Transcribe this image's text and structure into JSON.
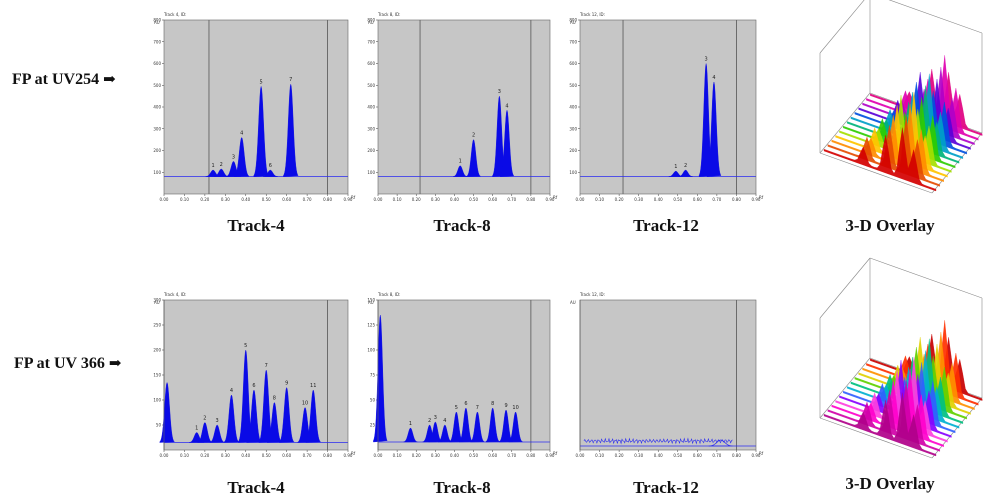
{
  "rows": [
    {
      "label": "FP at UV254",
      "arrow": "➡"
    },
    {
      "label": "FP at UV 366",
      "arrow": "➡"
    }
  ],
  "colors": {
    "plot_bg": "#c6c6c6",
    "peak_fill": "#0a0ae6",
    "baseline": "#2a2af0",
    "rf_marker": "#555555"
  },
  "chart_data": [
    {
      "type": "area",
      "caption": "Track-4",
      "header": "Track 4, ID:",
      "xlim": [
        0,
        0.9
      ],
      "ylim": [
        0,
        800
      ],
      "yticks": [
        100,
        200,
        300,
        400,
        500,
        600,
        700,
        800
      ],
      "xticks": [
        0.0,
        0.1,
        0.2,
        0.3,
        0.4,
        0.5,
        0.6,
        0.7,
        0.8,
        0.9
      ],
      "xtick_labels": [
        "0.00",
        "0.10",
        "0.20",
        "0.30",
        "0.40",
        "0.50",
        "0.60",
        "0.70",
        "0.80",
        "0.90"
      ],
      "y_unit": "AU",
      "x_unit": "Rf",
      "rf_lines": [
        0.22,
        0.8
      ],
      "baseline": 80,
      "peaks": [
        {
          "label": "1",
          "rf": 0.24,
          "height": 110
        },
        {
          "label": "2",
          "rf": 0.28,
          "height": 115
        },
        {
          "label": "3",
          "rf": 0.34,
          "height": 150
        },
        {
          "label": "4",
          "rf": 0.38,
          "height": 260
        },
        {
          "label": "5",
          "rf": 0.475,
          "height": 495
        },
        {
          "label": "6",
          "rf": 0.52,
          "height": 110
        },
        {
          "label": "7",
          "rf": 0.62,
          "height": 505
        }
      ]
    },
    {
      "type": "area",
      "caption": "Track-8",
      "header": "Track 8, ID:",
      "xlim": [
        0,
        0.9
      ],
      "ylim": [
        0,
        800
      ],
      "yticks": [
        100,
        200,
        300,
        400,
        500,
        600,
        700,
        800
      ],
      "xticks": [
        0.0,
        0.1,
        0.2,
        0.3,
        0.4,
        0.5,
        0.6,
        0.7,
        0.8,
        0.9
      ],
      "xtick_labels": [
        "0.00",
        "0.10",
        "0.20",
        "0.30",
        "0.40",
        "0.50",
        "0.60",
        "0.70",
        "0.80",
        "0.90"
      ],
      "y_unit": "AU",
      "x_unit": "Rf",
      "rf_lines": [
        0.22,
        0.8
      ],
      "baseline": 80,
      "peaks": [
        {
          "label": "1",
          "rf": 0.43,
          "height": 130
        },
        {
          "label": "2",
          "rf": 0.5,
          "height": 250
        },
        {
          "label": "3",
          "rf": 0.635,
          "height": 450
        },
        {
          "label": "4",
          "rf": 0.675,
          "height": 385
        }
      ]
    },
    {
      "type": "area",
      "caption": "Track-12",
      "header": "Track 12, ID:",
      "xlim": [
        0,
        0.9
      ],
      "ylim": [
        0,
        800
      ],
      "yticks": [
        100,
        200,
        300,
        400,
        500,
        600,
        700,
        800
      ],
      "xticks": [
        0.0,
        0.1,
        0.2,
        0.3,
        0.4,
        0.5,
        0.6,
        0.7,
        0.8,
        0.9
      ],
      "xtick_labels": [
        "0.00",
        "0.10",
        "0.20",
        "0.30",
        "0.40",
        "0.50",
        "0.60",
        "0.70",
        "0.80",
        "0.90"
      ],
      "y_unit": "AU",
      "x_unit": "Rf",
      "rf_lines": [
        0.22,
        0.8
      ],
      "baseline": 80,
      "peaks": [
        {
          "label": "1",
          "rf": 0.49,
          "height": 105
        },
        {
          "label": "2",
          "rf": 0.54,
          "height": 110
        },
        {
          "label": "3",
          "rf": 0.645,
          "height": 600
        },
        {
          "label": "4",
          "rf": 0.685,
          "height": 515
        }
      ]
    },
    {
      "type": "area3d",
      "caption": "3-D Overlay",
      "palette": [
        "#d40000",
        "#e54b00",
        "#ff8c00",
        "#ffc400",
        "#a6e000",
        "#2ecc00",
        "#00b37a",
        "#00a0c8",
        "#0050e0",
        "#5a00d8",
        "#b000c8",
        "#e000b0",
        "#e00080"
      ]
    },
    {
      "type": "area",
      "caption": "Track-4",
      "header": "Track 4, ID:",
      "xlim": [
        0,
        0.9
      ],
      "ylim": [
        0,
        300
      ],
      "yticks": [
        50,
        100,
        150,
        200,
        250,
        300
      ],
      "xticks": [
        0.0,
        0.1,
        0.2,
        0.3,
        0.4,
        0.5,
        0.6,
        0.7,
        0.8,
        0.9
      ],
      "xtick_labels": [
        "0.00",
        "0.10",
        "0.20",
        "0.30",
        "0.40",
        "0.50",
        "0.60",
        "0.70",
        "0.80",
        "0.90"
      ],
      "y_unit": "AU",
      "x_unit": "Rf",
      "rf_lines": [
        0.0,
        0.8
      ],
      "baseline": 15,
      "peaks": [
        {
          "label": "",
          "rf": 0.015,
          "height": 135
        },
        {
          "label": "1",
          "rf": 0.16,
          "height": 35
        },
        {
          "label": "2",
          "rf": 0.2,
          "height": 55
        },
        {
          "label": "3",
          "rf": 0.26,
          "height": 50
        },
        {
          "label": "4",
          "rf": 0.33,
          "height": 110
        },
        {
          "label": "5",
          "rf": 0.4,
          "height": 200
        },
        {
          "label": "6",
          "rf": 0.44,
          "height": 120
        },
        {
          "label": "7",
          "rf": 0.5,
          "height": 160
        },
        {
          "label": "8",
          "rf": 0.54,
          "height": 95
        },
        {
          "label": "9",
          "rf": 0.6,
          "height": 125
        },
        {
          "label": "10",
          "rf": 0.69,
          "height": 85
        },
        {
          "label": "11",
          "rf": 0.73,
          "height": 120
        }
      ]
    },
    {
      "type": "area",
      "caption": "Track-8",
      "header": "Track 8, ID:",
      "xlim": [
        0,
        0.9
      ],
      "ylim": [
        0,
        150
      ],
      "yticks": [
        25,
        50,
        75,
        100,
        125,
        150
      ],
      "xticks": [
        0.0,
        0.1,
        0.2,
        0.3,
        0.4,
        0.5,
        0.6,
        0.7,
        0.8,
        0.9
      ],
      "xtick_labels": [
        "0.00",
        "0.10",
        "0.20",
        "0.30",
        "0.40",
        "0.50",
        "0.60",
        "0.70",
        "0.80",
        "0.90"
      ],
      "y_unit": "AU",
      "x_unit": "Rf",
      "rf_lines": [
        0.0,
        0.8
      ],
      "baseline": 8,
      "peaks": [
        {
          "label": "",
          "rf": 0.012,
          "height": 135
        },
        {
          "label": "1",
          "rf": 0.17,
          "height": 22
        },
        {
          "label": "2",
          "rf": 0.27,
          "height": 25
        },
        {
          "label": "3",
          "rf": 0.3,
          "height": 28
        },
        {
          "label": "4",
          "rf": 0.35,
          "height": 25
        },
        {
          "label": "5",
          "rf": 0.41,
          "height": 38
        },
        {
          "label": "6",
          "rf": 0.46,
          "height": 42
        },
        {
          "label": "7",
          "rf": 0.52,
          "height": 38
        },
        {
          "label": "8",
          "rf": 0.6,
          "height": 42
        },
        {
          "label": "9",
          "rf": 0.67,
          "height": 40
        },
        {
          "label": "10",
          "rf": 0.72,
          "height": 38
        }
      ]
    },
    {
      "type": "area",
      "caption": "Track-12",
      "header": "Track 12, ID:",
      "xlim": [
        0,
        0.9
      ],
      "ylim": [
        0,
        300
      ],
      "yticks": [],
      "xticks": [
        0.0,
        0.1,
        0.2,
        0.3,
        0.4,
        0.5,
        0.6,
        0.7,
        0.8,
        0.9
      ],
      "xtick_labels": [
        "0.00",
        "0.10",
        "0.20",
        "0.30",
        "0.40",
        "0.50",
        "0.60",
        "0.70",
        "0.80",
        "0.90"
      ],
      "y_unit": "AU",
      "x_unit": "Rf",
      "rf_lines": [
        0.0,
        0.8
      ],
      "baseline": 8,
      "noise": true,
      "peaks": [
        {
          "label": "",
          "rf": 0.72,
          "height": 20
        }
      ]
    },
    {
      "type": "area3d",
      "caption": "3-D Overlay",
      "palette": [
        "#b0008a",
        "#d000a8",
        "#ff00cc",
        "#ff40e0",
        "#8800ff",
        "#3060ff",
        "#00b0d0",
        "#00c080",
        "#60d000",
        "#e0d000",
        "#ff9000",
        "#ff3000",
        "#c80000"
      ]
    }
  ]
}
